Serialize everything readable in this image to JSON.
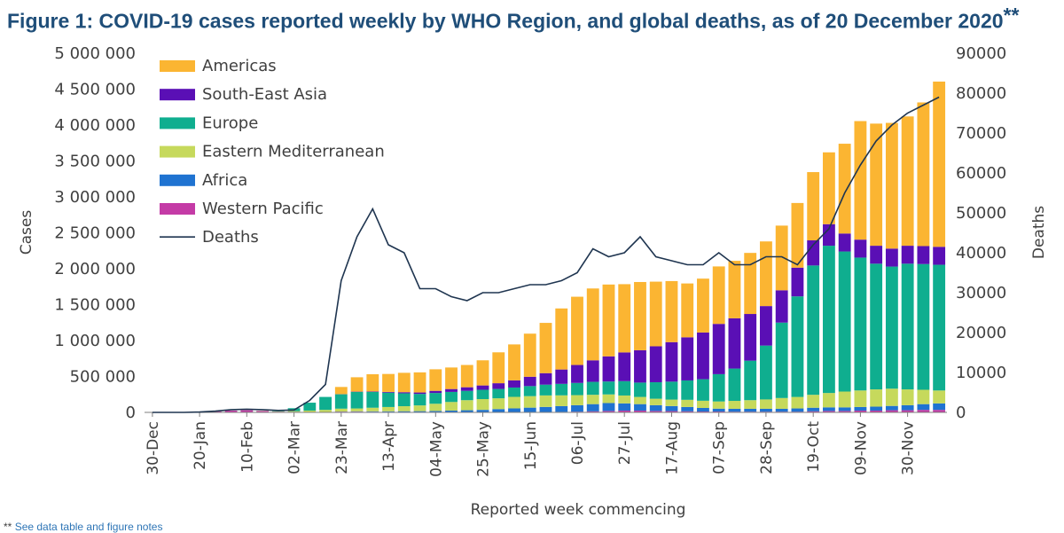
{
  "title": {
    "text": "Figure 1: COVID-19 cases reported weekly by WHO Region, and global deaths, as of 20 December 2020",
    "marker": "**"
  },
  "footnote": {
    "marker": "**",
    "text": "See data table and figure notes"
  },
  "colors": {
    "Americas": "#fbb532",
    "South-East Asia": "#5a0fb5",
    "Europe": "#0fae8f",
    "Eastern Mediterranean": "#c6d95c",
    "Africa": "#1f73d1",
    "Western Pacific": "#c43ba6",
    "Deaths": "#1f3550",
    "axis": "#7f7f7f",
    "title": "#1f4e79"
  },
  "chart_data": {
    "type": "bar",
    "stacked": true,
    "xlabel": "Reported week commencing",
    "ylabel": "Cases",
    "ylabel_right": "Deaths",
    "ylim": [
      0,
      5000000
    ],
    "ylim_right": [
      0,
      90000
    ],
    "y_ticks": [
      "0",
      "500 000",
      "1 000 000",
      "1 500 000",
      "2 000 000",
      "2 500 000",
      "3 000 000",
      "3 500 000",
      "4 000 000",
      "4 500 000",
      "5 000 000"
    ],
    "y_ticks_right": [
      "0",
      "10000",
      "20000",
      "30000",
      "40000",
      "50000",
      "60000",
      "70000",
      "80000",
      "90000"
    ],
    "grid": false,
    "legend_position": "top-left",
    "categories": [
      "30-Dec",
      "06-Jan",
      "13-Jan",
      "20-Jan",
      "27-Jan",
      "03-Feb",
      "10-Feb",
      "17-Feb",
      "24-Feb",
      "02-Mar",
      "09-Mar",
      "16-Mar",
      "23-Mar",
      "30-Mar",
      "06-Apr",
      "13-Apr",
      "20-Apr",
      "27-Apr",
      "04-May",
      "11-May",
      "18-May",
      "25-May",
      "01-Jun",
      "08-Jun",
      "15-Jun",
      "22-Jun",
      "29-Jun",
      "06-Jul",
      "13-Jul",
      "20-Jul",
      "27-Jul",
      "03-Aug",
      "10-Aug",
      "17-Aug",
      "24-Aug",
      "31-Aug",
      "07-Sep",
      "14-Sep",
      "21-Sep",
      "28-Sep",
      "05-Oct",
      "12-Oct",
      "19-Oct",
      "26-Oct",
      "02-Nov",
      "09-Nov",
      "16-Nov",
      "23-Nov",
      "30-Nov",
      "07-Dec",
      "14-Dec"
    ],
    "tick_labels": [
      "30-Dec",
      "20-Jan",
      "10-Feb",
      "02-Mar",
      "23-Mar",
      "13-Apr",
      "04-May",
      "25-May",
      "15-Jun",
      "06-Jul",
      "27-Jul",
      "17-Aug",
      "07-Sep",
      "28-Sep",
      "19-Oct",
      "09-Nov",
      "30-Nov"
    ],
    "series": [
      {
        "name": "Western Pacific",
        "values": [
          0,
          0,
          0,
          5000,
          15000,
          25000,
          30000,
          20000,
          10000,
          8000,
          5000,
          5000,
          10000,
          10000,
          8000,
          7000,
          6000,
          5000,
          5000,
          5000,
          5000,
          5000,
          6000,
          6000,
          6000,
          6000,
          7000,
          10000,
          15000,
          20000,
          25000,
          25000,
          20000,
          18000,
          15000,
          12000,
          12000,
          10000,
          10000,
          10000,
          10000,
          10000,
          15000,
          20000,
          20000,
          25000,
          25000,
          30000,
          30000,
          35000,
          35000
        ]
      },
      {
        "name": "Africa",
        "values": [
          0,
          0,
          0,
          0,
          0,
          0,
          0,
          0,
          0,
          0,
          0,
          0,
          2000,
          5000,
          7000,
          8000,
          10000,
          12000,
          15000,
          20000,
          25000,
          30000,
          40000,
          50000,
          60000,
          70000,
          80000,
          90000,
          100000,
          110000,
          100000,
          90000,
          80000,
          70000,
          60000,
          50000,
          40000,
          40000,
          40000,
          40000,
          40000,
          45000,
          50000,
          50000,
          50000,
          50000,
          55000,
          60000,
          70000,
          80000,
          90000
        ]
      },
      {
        "name": "Eastern Mediterranean",
        "values": [
          0,
          0,
          0,
          0,
          0,
          0,
          0,
          2000,
          5000,
          10000,
          20000,
          30000,
          40000,
          40000,
          50000,
          60000,
          70000,
          80000,
          100000,
          120000,
          140000,
          150000,
          150000,
          160000,
          160000,
          160000,
          150000,
          140000,
          130000,
          120000,
          110000,
          100000,
          90000,
          90000,
          100000,
          100000,
          100000,
          110000,
          120000,
          130000,
          150000,
          160000,
          180000,
          200000,
          220000,
          230000,
          240000,
          240000,
          220000,
          200000,
          180000
        ]
      },
      {
        "name": "Europe",
        "values": [
          0,
          0,
          0,
          0,
          0,
          0,
          0,
          0,
          5000,
          40000,
          110000,
          180000,
          200000,
          230000,
          220000,
          200000,
          180000,
          160000,
          150000,
          140000,
          130000,
          130000,
          130000,
          130000,
          140000,
          150000,
          160000,
          170000,
          180000,
          180000,
          200000,
          200000,
          230000,
          250000,
          270000,
          300000,
          380000,
          450000,
          550000,
          750000,
          1050000,
          1400000,
          1800000,
          2050000,
          1950000,
          1850000,
          1750000,
          1700000,
          1750000,
          1750000,
          1750000
        ]
      },
      {
        "name": "South-East Asia",
        "values": [
          0,
          0,
          0,
          0,
          0,
          0,
          0,
          0,
          0,
          0,
          0,
          0,
          2000,
          4000,
          6000,
          10000,
          15000,
          20000,
          30000,
          40000,
          50000,
          60000,
          80000,
          100000,
          130000,
          160000,
          200000,
          250000,
          300000,
          350000,
          400000,
          450000,
          500000,
          550000,
          600000,
          650000,
          700000,
          700000,
          650000,
          550000,
          450000,
          400000,
          350000,
          300000,
          250000,
          250000,
          250000,
          250000,
          250000,
          250000,
          250000
        ]
      },
      {
        "name": "Americas",
        "values": [
          0,
          0,
          0,
          0,
          0,
          0,
          0,
          0,
          0,
          0,
          0,
          0,
          100000,
          200000,
          240000,
          250000,
          270000,
          280000,
          300000,
          300000,
          310000,
          350000,
          430000,
          500000,
          600000,
          700000,
          850000,
          950000,
          1000000,
          1000000,
          950000,
          950000,
          900000,
          850000,
          750000,
          750000,
          800000,
          800000,
          850000,
          900000,
          900000,
          900000,
          950000,
          1000000,
          1250000,
          1650000,
          1700000,
          1750000,
          1800000,
          2000000,
          2300000
        ]
      }
    ],
    "line": {
      "name": "Deaths",
      "axis": "right",
      "values": [
        0,
        0,
        0,
        100,
        300,
        700,
        800,
        700,
        500,
        600,
        3000,
        7000,
        33000,
        44000,
        51000,
        42000,
        40000,
        31000,
        31000,
        29000,
        28000,
        30000,
        30000,
        31000,
        32000,
        32000,
        33000,
        35000,
        41000,
        39000,
        40000,
        44000,
        39000,
        38000,
        37000,
        37000,
        40000,
        37000,
        37000,
        39000,
        39000,
        37000,
        42000,
        46000,
        55000,
        62000,
        68000,
        72000,
        75000,
        77000,
        79000
      ]
    }
  }
}
